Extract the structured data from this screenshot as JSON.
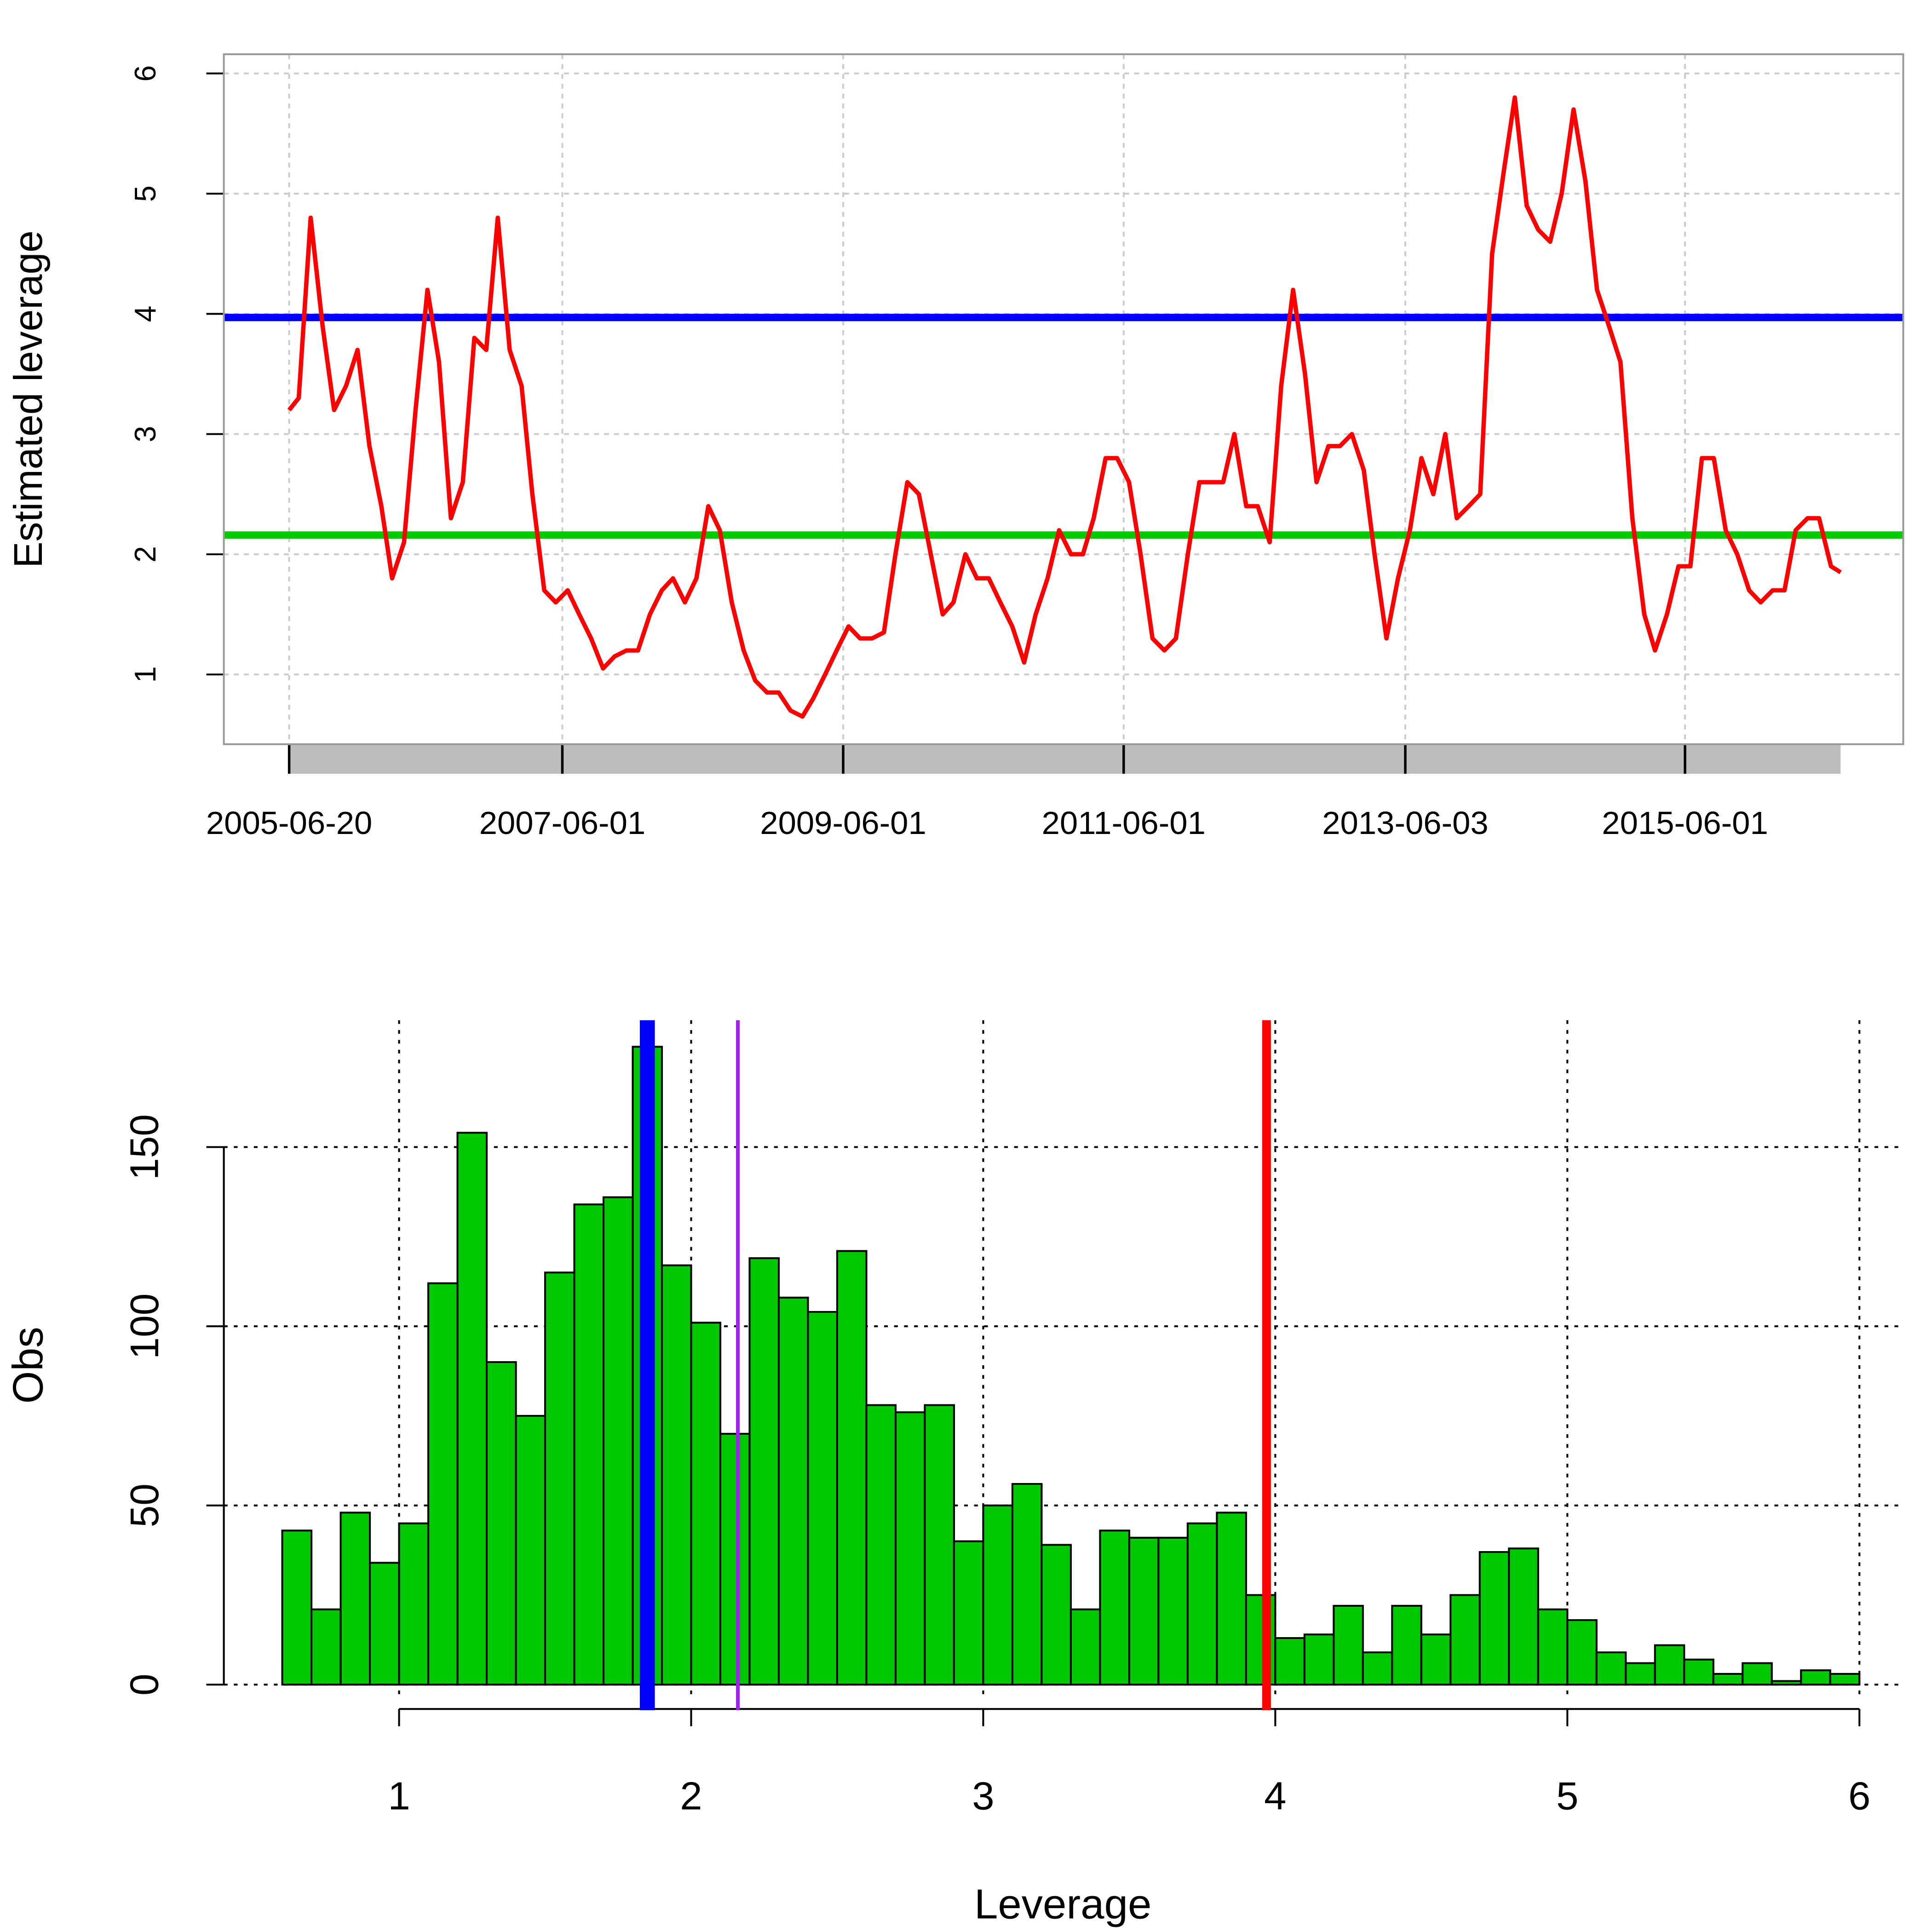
{
  "chart_data": [
    {
      "type": "line",
      "ylabel": "Estimated leverage",
      "color": "#ff0000",
      "x": [
        "2005-06-20",
        "2005-07-15",
        "2005-08-15",
        "2005-09-15",
        "2005-10-15",
        "2005-11-15",
        "2005-12-15",
        "2006-01-15",
        "2006-02-15",
        "2006-03-15",
        "2006-04-15",
        "2006-05-15",
        "2006-06-15",
        "2006-07-15",
        "2006-08-15",
        "2006-09-15",
        "2006-10-15",
        "2006-11-15",
        "2006-12-15",
        "2007-01-15",
        "2007-02-15",
        "2007-03-15",
        "2007-04-15",
        "2007-05-15",
        "2007-06-15",
        "2007-07-15",
        "2007-08-15",
        "2007-09-15",
        "2007-10-15",
        "2007-11-15",
        "2007-12-15",
        "2008-01-15",
        "2008-02-15",
        "2008-03-15",
        "2008-04-15",
        "2008-05-15",
        "2008-06-15",
        "2008-07-15",
        "2008-08-15",
        "2008-09-15",
        "2008-10-15",
        "2008-11-15",
        "2008-12-15",
        "2009-01-15",
        "2009-02-15",
        "2009-03-15",
        "2009-04-15",
        "2009-05-15",
        "2009-06-15",
        "2009-07-15",
        "2009-08-15",
        "2009-09-15",
        "2009-10-15",
        "2009-11-15",
        "2009-12-15",
        "2010-01-15",
        "2010-02-15",
        "2010-03-15",
        "2010-04-15",
        "2010-05-15",
        "2010-06-15",
        "2010-07-15",
        "2010-08-15",
        "2010-09-15",
        "2010-10-15",
        "2010-11-15",
        "2010-12-15",
        "2011-01-15",
        "2011-02-15",
        "2011-03-15",
        "2011-04-15",
        "2011-05-15",
        "2011-06-15",
        "2011-07-15",
        "2011-08-15",
        "2011-09-15",
        "2011-10-15",
        "2011-11-15",
        "2011-12-15",
        "2012-01-15",
        "2012-02-15",
        "2012-03-15",
        "2012-04-15",
        "2012-05-15",
        "2012-06-15",
        "2012-07-15",
        "2012-08-15",
        "2012-09-15",
        "2012-10-15",
        "2012-11-15",
        "2012-12-15",
        "2013-01-15",
        "2013-02-15",
        "2013-03-15",
        "2013-04-15",
        "2013-05-15",
        "2013-06-15",
        "2013-07-15",
        "2013-08-15",
        "2013-09-15",
        "2013-10-15",
        "2013-11-15",
        "2013-12-15",
        "2014-01-15",
        "2014-02-15",
        "2014-03-15",
        "2014-04-15",
        "2014-05-15",
        "2014-06-15",
        "2014-07-15",
        "2014-08-15",
        "2014-09-15",
        "2014-10-15",
        "2014-11-15",
        "2014-12-15",
        "2015-01-15",
        "2015-02-15",
        "2015-03-15",
        "2015-04-15",
        "2015-05-15",
        "2015-06-15",
        "2015-07-15",
        "2015-08-15",
        "2015-09-15",
        "2015-10-15",
        "2015-11-15",
        "2015-12-15",
        "2016-01-15",
        "2016-02-15",
        "2016-03-15",
        "2016-04-15",
        "2016-05-15",
        "2016-06-15",
        "2016-07-10"
      ],
      "values": [
        3.2,
        3.3,
        4.8,
        3.9,
        3.2,
        3.4,
        3.7,
        2.9,
        2.4,
        1.8,
        2.1,
        3.2,
        4.2,
        3.6,
        2.3,
        2.6,
        3.8,
        3.7,
        4.8,
        3.7,
        3.4,
        2.5,
        1.7,
        1.6,
        1.7,
        1.5,
        1.3,
        1.05,
        1.15,
        1.2,
        1.2,
        1.5,
        1.7,
        1.8,
        1.6,
        1.8,
        2.4,
        2.2,
        1.6,
        1.2,
        0.95,
        0.85,
        0.85,
        0.7,
        0.65,
        0.8,
        1.0,
        1.2,
        1.4,
        1.3,
        1.3,
        1.35,
        2.0,
        2.6,
        2.5,
        2.0,
        1.5,
        1.6,
        2.0,
        1.8,
        1.8,
        1.6,
        1.4,
        1.1,
        1.5,
        1.8,
        2.2,
        2.0,
        2.0,
        2.3,
        2.8,
        2.8,
        2.6,
        2.0,
        1.3,
        1.2,
        1.3,
        2.0,
        2.6,
        2.6,
        2.6,
        3.0,
        2.4,
        2.4,
        2.1,
        3.4,
        4.2,
        3.5,
        2.6,
        2.9,
        2.9,
        3.0,
        2.7,
        2.0,
        1.3,
        1.8,
        2.2,
        2.8,
        2.5,
        3.0,
        2.3,
        2.4,
        2.5,
        4.5,
        5.2,
        5.8,
        4.9,
        4.7,
        4.6,
        5.0,
        5.7,
        5.1,
        4.2,
        3.9,
        3.6,
        2.3,
        1.5,
        1.2,
        1.5,
        1.9,
        1.9,
        2.8,
        2.8,
        2.2,
        2.0,
        1.7,
        1.6,
        1.7,
        1.7,
        2.2,
        2.3,
        2.3,
        1.9,
        1.85
      ],
      "xlim": [
        "2005-01-01",
        "2016-12-20"
      ],
      "ylim": [
        0.42,
        6.16
      ],
      "xticks": [
        "2005-06-20",
        "2007-06-01",
        "2009-06-01",
        "2011-06-01",
        "2013-06-03",
        "2015-06-01"
      ],
      "yticks": [
        1,
        2,
        3,
        4,
        5,
        6
      ],
      "grid": true,
      "hlines": [
        {
          "value": 3.97,
          "color": "#0000ff"
        },
        {
          "value": 2.16,
          "color": "#00cc00"
        }
      ]
    },
    {
      "type": "histogram",
      "xlabel": "Leverage",
      "ylabel": "Obs",
      "color": "#00c800",
      "bins": [
        0.6,
        0.7,
        0.8,
        0.9,
        1.0,
        1.1,
        1.2,
        1.3,
        1.4,
        1.5,
        1.6,
        1.7,
        1.8,
        1.9,
        2.0,
        2.1,
        2.2,
        2.3,
        2.4,
        2.5,
        2.6,
        2.7,
        2.8,
        2.9,
        3.0,
        3.1,
        3.2,
        3.3,
        3.4,
        3.5,
        3.6,
        3.7,
        3.8,
        3.9,
        4.0,
        4.1,
        4.2,
        4.3,
        4.4,
        4.5,
        4.6,
        4.7,
        4.8,
        4.9,
        5.0,
        5.1,
        5.2,
        5.3,
        5.4,
        5.5,
        5.6,
        5.7,
        5.8,
        5.9,
        6.0
      ],
      "values": [
        43,
        21,
        48,
        34,
        45,
        112,
        154,
        90,
        75,
        115,
        134,
        136,
        178,
        117,
        101,
        70,
        119,
        108,
        104,
        121,
        78,
        76,
        78,
        40,
        50,
        56,
        39,
        21,
        43,
        41,
        41,
        45,
        48,
        25,
        13,
        14,
        22,
        9,
        22,
        14,
        25,
        37,
        38,
        21,
        18,
        9,
        6,
        11,
        7,
        3,
        6,
        1,
        4,
        3
      ],
      "xlim": [
        0.4,
        6.15
      ],
      "ylim": [
        -3.7,
        185.4
      ],
      "xticks": [
        1,
        2,
        3,
        4,
        5,
        6
      ],
      "yticks": [
        0,
        50,
        100,
        150
      ],
      "grid": true,
      "vlines": [
        {
          "value": 1.85,
          "color": "#0000ff",
          "linewidth": 12
        },
        {
          "value": 2.16,
          "color": "#a020f0",
          "linewidth": 3
        },
        {
          "value": 3.97,
          "color": "#ff0000",
          "linewidth": 7
        }
      ]
    }
  ]
}
